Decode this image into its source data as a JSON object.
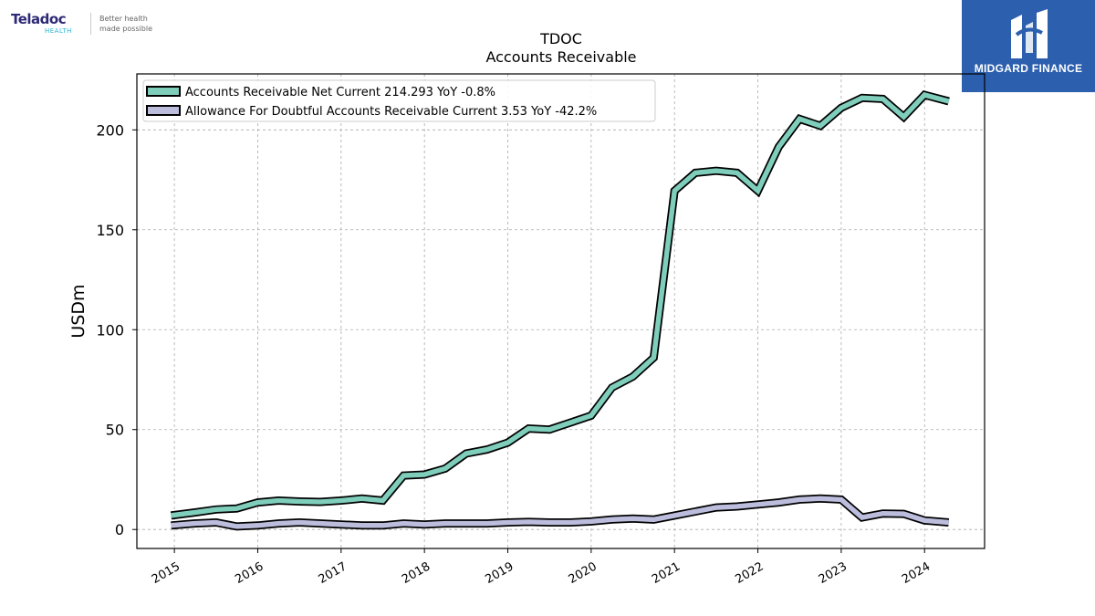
{
  "branding": {
    "left_logo": {
      "name": "Teladoc",
      "sub": "HEALTH",
      "tagline_1": "Better health",
      "tagline_2": "made possible"
    },
    "right_logo": {
      "text": "MIDGARD FINANCE",
      "bg_color": "#2c5fae"
    }
  },
  "chart_data": {
    "type": "line",
    "title": "TDOC",
    "subtitle": "Accounts Receivable",
    "ylabel": "USDm",
    "xlabel": "",
    "xlim": [
      2014.55,
      2024.72
    ],
    "ylim": [
      -9.5,
      228
    ],
    "yticks": [
      0,
      50,
      100,
      150,
      200
    ],
    "xticks": [
      2015,
      2016,
      2017,
      2018,
      2019,
      2020,
      2021,
      2022,
      2023,
      2024
    ],
    "grid": true,
    "legend_position": "top-left",
    "series": [
      {
        "name": "Accounts Receivable Net Current  214.293 YoY -0.8%",
        "color": "#7fcdbb",
        "x": [
          2014.96,
          2015.24,
          2015.5,
          2015.75,
          2016.0,
          2016.25,
          2016.5,
          2016.75,
          2017.0,
          2017.25,
          2017.5,
          2017.75,
          2018.0,
          2018.25,
          2018.5,
          2018.75,
          2019.0,
          2019.25,
          2019.5,
          2019.75,
          2020.0,
          2020.25,
          2020.5,
          2020.75,
          2021.0,
          2021.25,
          2021.5,
          2021.75,
          2022.0,
          2022.25,
          2022.5,
          2022.75,
          2023.0,
          2023.25,
          2023.5,
          2023.75,
          2024.0,
          2024.29
        ],
        "values": [
          7,
          8.5,
          10,
          10.5,
          13.5,
          14.5,
          14,
          13.8,
          14.5,
          15.5,
          14.5,
          27,
          27.5,
          30.5,
          38,
          40,
          43.5,
          50.5,
          50,
          53.5,
          57,
          71,
          76.5,
          86,
          169.5,
          178.5,
          179.5,
          178.5,
          169.5,
          191.5,
          205.5,
          202,
          211,
          216,
          215.5,
          206.5,
          217.5,
          214.3
        ]
      },
      {
        "name": "Allowance For Doubtful Accounts Receivable Current  3.53 YoY -42.2%",
        "color": "#bcbddc",
        "x": [
          2014.96,
          2015.24,
          2015.5,
          2015.75,
          2016.0,
          2016.25,
          2016.5,
          2016.75,
          2017.0,
          2017.25,
          2017.5,
          2017.75,
          2018.0,
          2018.25,
          2018.5,
          2018.75,
          2019.0,
          2019.25,
          2019.5,
          2019.75,
          2020.0,
          2020.25,
          2020.5,
          2020.75,
          2021.0,
          2021.25,
          2021.5,
          2021.75,
          2022.0,
          2022.25,
          2022.5,
          2022.75,
          2023.0,
          2023.25,
          2023.5,
          2023.75,
          2024.0,
          2024.29
        ],
        "values": [
          2,
          3,
          3.5,
          1.5,
          2,
          3,
          3.5,
          3,
          2.5,
          2,
          2,
          3,
          2.5,
          3,
          3,
          3,
          3.5,
          3.8,
          3.5,
          3.5,
          4,
          5,
          5.5,
          5,
          7,
          9,
          11,
          11.5,
          12.5,
          13.5,
          15,
          15.5,
          15,
          6,
          8,
          7.8,
          4.5,
          3.53
        ]
      }
    ]
  }
}
